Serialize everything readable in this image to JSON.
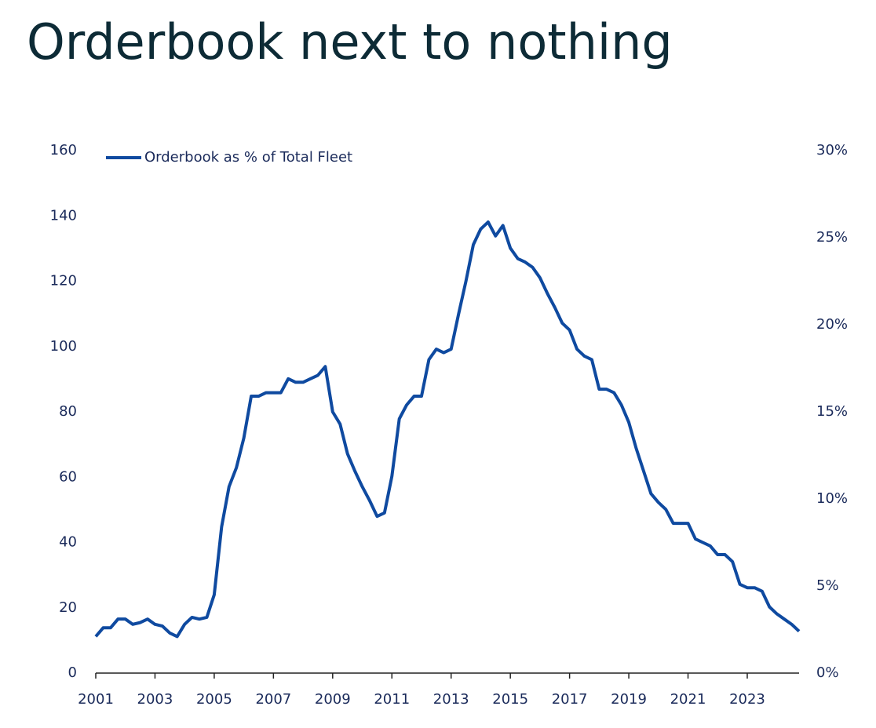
{
  "chart_data": {
    "type": "line",
    "title": "Orderbook next to nothing",
    "x": [
      2001,
      2001.25,
      2001.5,
      2001.75,
      2002,
      2002.25,
      2002.5,
      2002.75,
      2003,
      2003.25,
      2003.5,
      2003.75,
      2004,
      2004.25,
      2004.5,
      2004.75,
      2005,
      2005.25,
      2005.5,
      2005.75,
      2006,
      2006.25,
      2006.5,
      2006.75,
      2007,
      2007.25,
      2007.5,
      2007.75,
      2008,
      2008.25,
      2008.5,
      2008.75,
      2009,
      2009.25,
      2009.5,
      2009.75,
      2010,
      2010.25,
      2010.5,
      2010.75,
      2011,
      2011.25,
      2011.5,
      2011.75,
      2012,
      2012.25,
      2012.5,
      2012.75,
      2013,
      2013.25,
      2013.5,
      2013.75,
      2014,
      2014.25,
      2014.5,
      2014.75,
      2015,
      2015.25,
      2015.5,
      2015.75,
      2016,
      2016.25,
      2016.5,
      2016.75,
      2017,
      2017.25,
      2017.5,
      2017.75,
      2018,
      2018.25,
      2018.5,
      2018.75,
      2019,
      2019.25,
      2019.5,
      2019.75,
      2020,
      2020.25,
      2020.5,
      2020.75,
      2021,
      2021.25,
      2021.5,
      2021.75,
      2022,
      2022.25,
      2022.5,
      2022.75,
      2023,
      2023.25,
      2023.5,
      2023.75,
      2024,
      2024.25,
      2024.5,
      2024.75
    ],
    "series": [
      {
        "name": "Orderbook as % of Total Fleet",
        "color": "#0f4aa0",
        "axis": "y2",
        "values": [
          2.1,
          2.6,
          2.6,
          3.1,
          3.1,
          2.8,
          2.9,
          3.1,
          2.8,
          2.7,
          2.3,
          2.1,
          2.8,
          3.2,
          3.1,
          3.2,
          4.5,
          8.4,
          10.7,
          11.8,
          13.5,
          15.9,
          15.9,
          16.1,
          16.1,
          16.1,
          16.9,
          16.7,
          16.7,
          16.9,
          17.1,
          17.6,
          15.0,
          14.3,
          12.6,
          11.6,
          10.7,
          9.9,
          9.0,
          9.2,
          11.3,
          14.6,
          15.4,
          15.9,
          15.9,
          18.0,
          18.6,
          18.4,
          18.6,
          20.6,
          22.5,
          24.6,
          25.5,
          25.9,
          25.1,
          25.7,
          24.4,
          23.8,
          23.6,
          23.3,
          22.7,
          21.8,
          21.0,
          20.1,
          19.7,
          18.6,
          18.2,
          18.0,
          16.3,
          16.3,
          16.1,
          15.4,
          14.4,
          12.9,
          11.6,
          10.3,
          9.8,
          9.4,
          8.6,
          8.6,
          8.6,
          7.7,
          7.5,
          7.3,
          6.8,
          6.8,
          6.4,
          5.1,
          4.9,
          4.9,
          4.7,
          3.8,
          3.4,
          3.1,
          2.8,
          2.4
        ]
      }
    ],
    "xlim": [
      2001,
      2024.75
    ],
    "xticks": [
      2001,
      2003,
      2005,
      2007,
      2009,
      2011,
      2013,
      2015,
      2017,
      2019,
      2021,
      2023
    ],
    "ylim": [
      0,
      160
    ],
    "yticks": [
      0,
      20,
      40,
      60,
      80,
      100,
      120,
      140,
      160
    ],
    "y2lim": [
      0,
      30
    ],
    "y2ticks": [
      {
        "value": 0,
        "label": "0%"
      },
      {
        "value": 5,
        "label": "5%"
      },
      {
        "value": 10,
        "label": "10%"
      },
      {
        "value": 15,
        "label": "15%"
      },
      {
        "value": 20,
        "label": "20%"
      },
      {
        "value": 25,
        "label": "25%"
      },
      {
        "value": 30,
        "label": "30%"
      }
    ],
    "legend": "top-left"
  }
}
